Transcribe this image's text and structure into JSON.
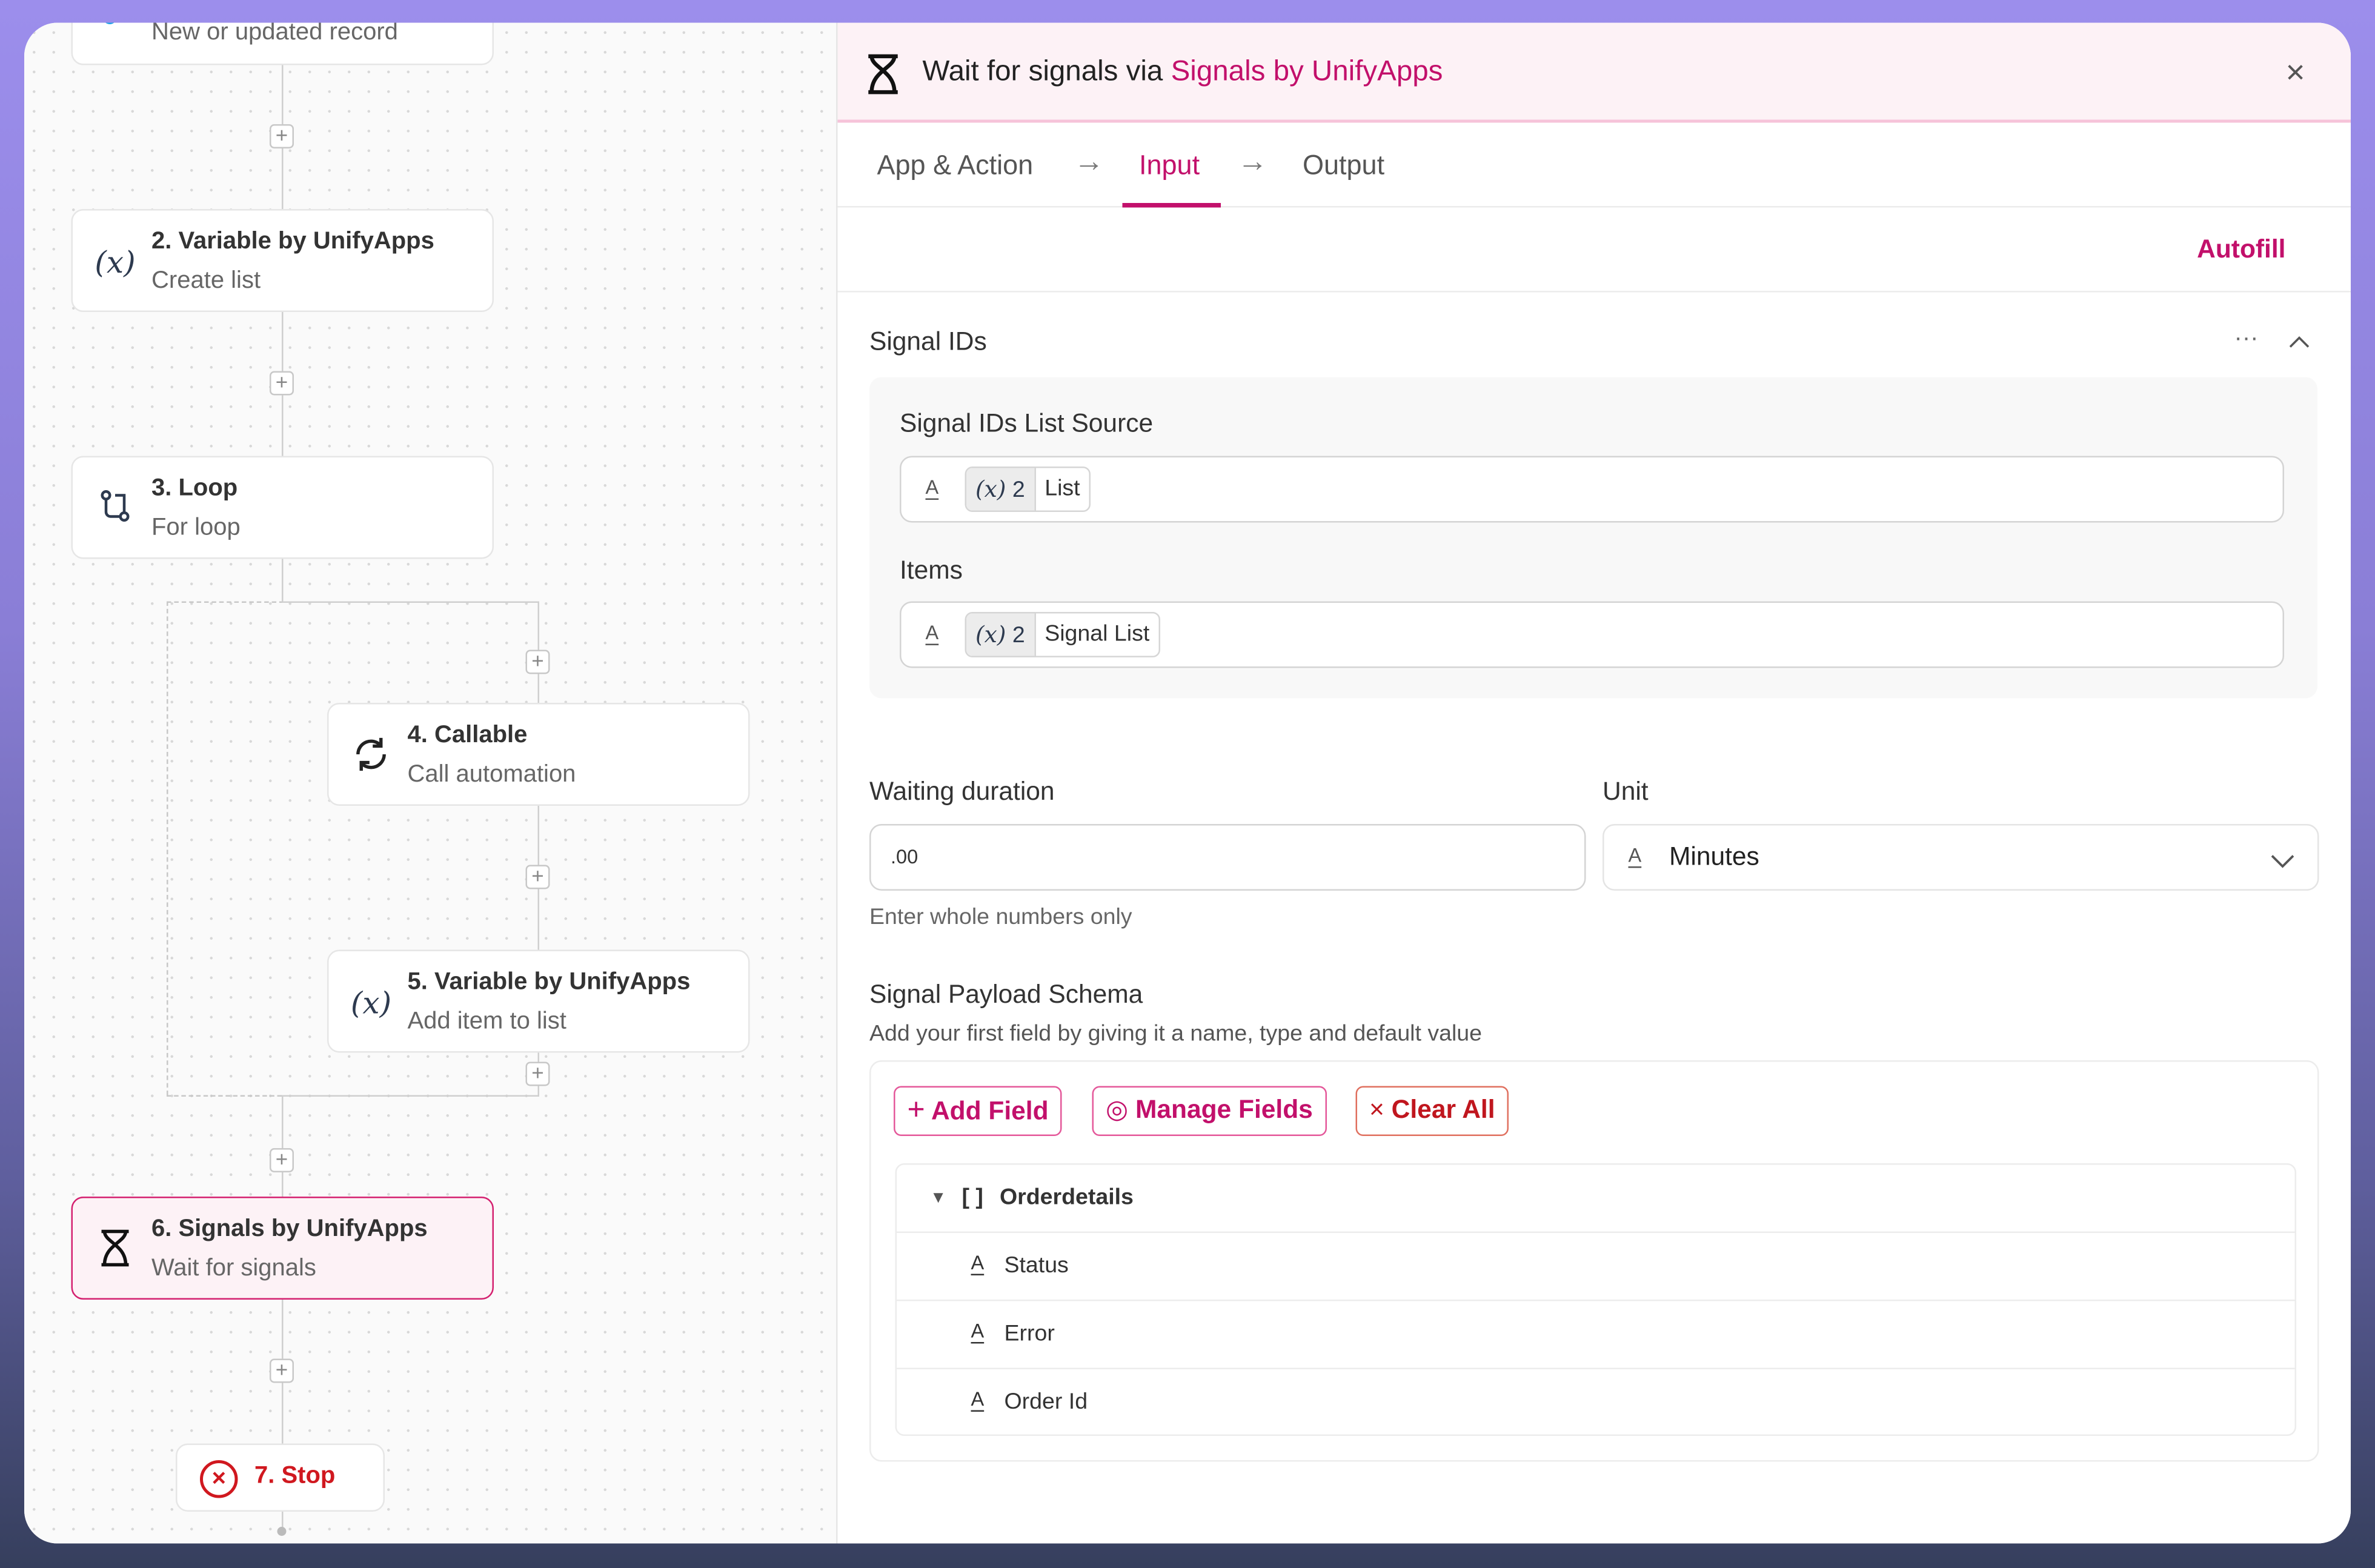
{
  "canvas": {
    "nodes": [
      {
        "title": "",
        "subtitle": "New or updated record",
        "icon": "trigger-dot-icon"
      },
      {
        "title": "2. Variable by UnifyApps",
        "subtitle": "Create list",
        "icon": "variable-icon"
      },
      {
        "title": "3. Loop",
        "subtitle": "For loop",
        "icon": "loop-icon"
      },
      {
        "title": "4. Callable",
        "subtitle": "Call automation",
        "icon": "refresh-icon"
      },
      {
        "title": "5. Variable by UnifyApps",
        "subtitle": "Add item to list",
        "icon": "variable-icon"
      },
      {
        "title": "6. Signals by UnifyApps",
        "subtitle": "Wait for signals",
        "icon": "hourglass-icon",
        "selected": true
      },
      {
        "title": "7. Stop",
        "icon": "stop-icon"
      }
    ],
    "variable_glyph": "(x)"
  },
  "panel": {
    "title_prefix": "Wait for signals via",
    "title_app": "Signals by UnifyApps",
    "tabs": [
      {
        "label": "App & Action"
      },
      {
        "label": "Input",
        "active": true
      },
      {
        "label": "Output"
      }
    ],
    "autofill": "Autofill",
    "signal_ids": {
      "heading": "Signal IDs",
      "list_source_label": "Signal IDs List Source",
      "list_source_chip": {
        "var": "(x)",
        "step": "2",
        "name": "List"
      },
      "items_label": "Items",
      "items_chip": {
        "var": "(x)",
        "step": "2",
        "name": "Signal List"
      }
    },
    "waiting_duration": {
      "label": "Waiting duration",
      "value": ".00",
      "helper": "Enter whole numbers only"
    },
    "unit": {
      "label": "Unit",
      "value": "Minutes"
    },
    "schema": {
      "heading": "Signal Payload Schema",
      "description": "Add your first field by giving it a name, type and default value",
      "add_field": "Add Field",
      "manage_fields": "Manage Fields",
      "clear_all": "Clear All",
      "tree": {
        "root": "Orderdetails",
        "root_type": "[ ]",
        "children": [
          "Status",
          "Error",
          "Order Id"
        ]
      }
    },
    "type_icon_glyph": "A"
  },
  "colors": {
    "accent": "#c2106b",
    "danger": "#c0161e",
    "header_bg": "#fdf2f6"
  }
}
